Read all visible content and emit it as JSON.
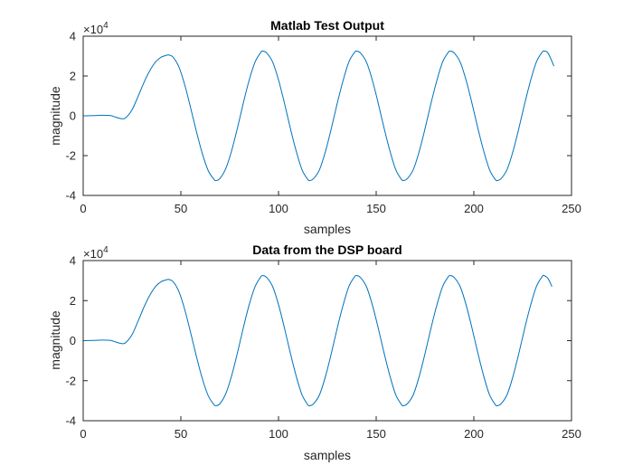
{
  "chart_data": [
    {
      "type": "line",
      "title": "Matlab Test Output",
      "xlabel": "samples",
      "ylabel": "magnitude",
      "xlim": [
        0,
        250
      ],
      "ylim": [
        -40000,
        40000
      ],
      "xticks": [
        0,
        50,
        100,
        150,
        200,
        250
      ],
      "yticks": [
        -40000,
        -20000,
        0,
        20000,
        40000
      ],
      "xtick_labels": [
        "0",
        "50",
        "100",
        "150",
        "200",
        "250"
      ],
      "ytick_labels": [
        "-4",
        "-2",
        "0",
        "2",
        "4"
      ],
      "y_exponent_base": "×10",
      "y_exponent_power": "4",
      "grid": false,
      "color": "#0072BD",
      "series": [
        {
          "x": [
            0,
            5,
            10,
            14,
            17,
            20,
            22,
            25,
            28,
            31,
            34,
            37,
            40,
            43,
            44,
            46,
            49,
            52,
            55,
            58,
            61,
            64,
            67,
            68,
            70,
            73,
            76,
            79,
            82,
            85,
            88,
            91,
            92,
            94,
            97,
            100,
            103,
            106,
            109,
            112,
            115,
            116,
            118,
            121,
            124,
            127,
            130,
            133,
            136,
            139,
            140,
            142,
            145,
            148,
            151,
            154,
            157,
            160,
            163,
            164,
            166,
            169,
            172,
            175,
            178,
            181,
            184,
            187,
            188,
            190,
            193,
            196,
            199,
            202,
            205,
            208,
            211,
            212,
            214,
            217,
            220,
            223,
            226,
            229,
            232,
            235,
            236,
            238,
            241
          ],
          "y": [
            0,
            100,
            300,
            100,
            -800,
            -1500,
            -800,
            3000,
            9500,
            16500,
            22500,
            27000,
            29500,
            30500,
            30500,
            29500,
            24500,
            15500,
            4000,
            -8000,
            -19000,
            -27500,
            -32000,
            -32500,
            -31500,
            -26500,
            -17500,
            -6000,
            6500,
            18000,
            27000,
            32000,
            32500,
            31500,
            27000,
            18000,
            6500,
            -6000,
            -17500,
            -27000,
            -32000,
            -32500,
            -31500,
            -27000,
            -18000,
            -6500,
            6000,
            17500,
            27000,
            32000,
            32500,
            31500,
            27000,
            18000,
            6500,
            -6000,
            -17500,
            -27000,
            -32000,
            -32500,
            -31500,
            -27000,
            -18000,
            -6500,
            6000,
            17500,
            27000,
            32000,
            32500,
            31500,
            27000,
            18000,
            6500,
            -6000,
            -17500,
            -27000,
            -32000,
            -32500,
            -31500,
            -27000,
            -18000,
            -6500,
            6000,
            17500,
            27000,
            32000,
            32500,
            31500,
            25000
          ]
        }
      ]
    },
    {
      "type": "line",
      "title": "Data from the DSP board",
      "xlabel": "samples",
      "ylabel": "magnitude",
      "xlim": [
        0,
        250
      ],
      "ylim": [
        -40000,
        40000
      ],
      "xticks": [
        0,
        50,
        100,
        150,
        200,
        250
      ],
      "yticks": [
        -40000,
        -20000,
        0,
        20000,
        40000
      ],
      "xtick_labels": [
        "0",
        "50",
        "100",
        "150",
        "200",
        "250"
      ],
      "ytick_labels": [
        "-4",
        "-2",
        "0",
        "2",
        "4"
      ],
      "y_exponent_base": "×10",
      "y_exponent_power": "4",
      "grid": false,
      "color": "#0072BD",
      "series": [
        {
          "x": [
            0,
            5,
            10,
            14,
            17,
            20,
            22,
            25,
            28,
            31,
            34,
            37,
            40,
            43,
            44,
            46,
            49,
            52,
            55,
            58,
            61,
            64,
            67,
            68,
            70,
            73,
            76,
            79,
            82,
            85,
            88,
            91,
            92,
            94,
            97,
            100,
            103,
            106,
            109,
            112,
            115,
            116,
            118,
            121,
            124,
            127,
            130,
            133,
            136,
            139,
            140,
            142,
            145,
            148,
            151,
            154,
            157,
            160,
            163,
            164,
            166,
            169,
            172,
            175,
            178,
            181,
            184,
            187,
            188,
            190,
            193,
            196,
            199,
            202,
            205,
            208,
            211,
            212,
            214,
            217,
            220,
            223,
            226,
            229,
            232,
            235,
            236,
            238,
            240
          ],
          "y": [
            0,
            100,
            300,
            100,
            -800,
            -1500,
            -800,
            3000,
            9500,
            16500,
            22500,
            27000,
            29500,
            30500,
            30500,
            29500,
            24500,
            15500,
            4000,
            -8000,
            -19000,
            -27500,
            -32000,
            -32500,
            -31500,
            -26500,
            -17500,
            -6000,
            6500,
            18000,
            27000,
            32000,
            32500,
            31500,
            27000,
            18000,
            6500,
            -6000,
            -17500,
            -27000,
            -32000,
            -32500,
            -31500,
            -27000,
            -18000,
            -6500,
            6000,
            17500,
            27000,
            32000,
            32500,
            31500,
            27000,
            18000,
            6500,
            -6000,
            -17500,
            -27000,
            -32000,
            -32500,
            -31500,
            -27000,
            -18000,
            -6500,
            6000,
            17500,
            27000,
            32000,
            32500,
            31500,
            27000,
            18000,
            6500,
            -6000,
            -17500,
            -27000,
            -32000,
            -32500,
            -31500,
            -27000,
            -18000,
            -6500,
            6000,
            17500,
            27000,
            32000,
            32500,
            31000,
            27000
          ]
        }
      ]
    }
  ]
}
